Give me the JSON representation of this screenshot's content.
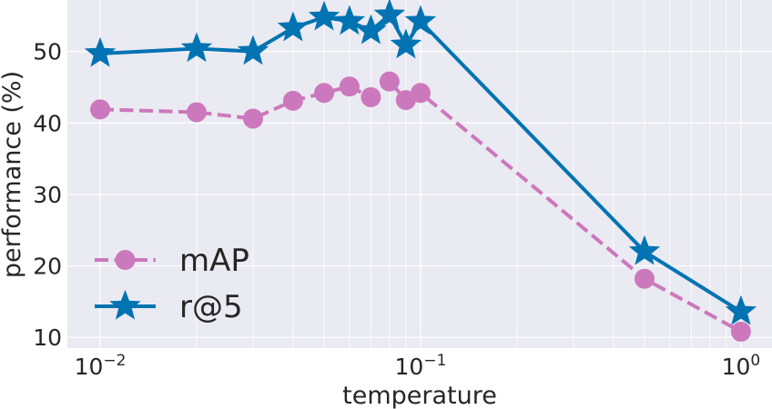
{
  "chart_data": {
    "type": "line",
    "xlabel": "temperature",
    "ylabel": "performance (%)",
    "x_scale": "log",
    "xlim": [
      0.0079,
      1.25
    ],
    "ylim": [
      8.5,
      57.2
    ],
    "x_ticks": [
      {
        "value": 0.01,
        "base": "10",
        "exp": "−2"
      },
      {
        "value": 0.1,
        "base": "10",
        "exp": "−1"
      },
      {
        "value": 1,
        "base": "10",
        "exp": "0"
      }
    ],
    "y_ticks": [
      {
        "value": 10,
        "label": "10"
      },
      {
        "value": 20,
        "label": "20"
      },
      {
        "value": 30,
        "label": "30"
      },
      {
        "value": 40,
        "label": "40"
      },
      {
        "value": 50,
        "label": "50"
      }
    ],
    "grid": true,
    "legend_position": "lower-left",
    "x": [
      0.01,
      0.02,
      0.03,
      0.04,
      0.05,
      0.06,
      0.07,
      0.08,
      0.09,
      0.1,
      0.5,
      1.0
    ],
    "series": [
      {
        "name": "mAP",
        "values": [
          41.9,
          41.5,
          40.6,
          43.1,
          44.2,
          45.1,
          43.6,
          45.8,
          43.2,
          44.2,
          18.2,
          10.8
        ],
        "color": "#cc78bc",
        "line_style": "dashed",
        "marker": "circle"
      },
      {
        "name": "r@5",
        "values": [
          49.7,
          50.4,
          50.0,
          53.3,
          54.8,
          54.2,
          52.9,
          55.1,
          50.9,
          54.2,
          22.0,
          13.6
        ],
        "color": "#0173b2",
        "line_style": "solid",
        "marker": "star"
      }
    ]
  }
}
